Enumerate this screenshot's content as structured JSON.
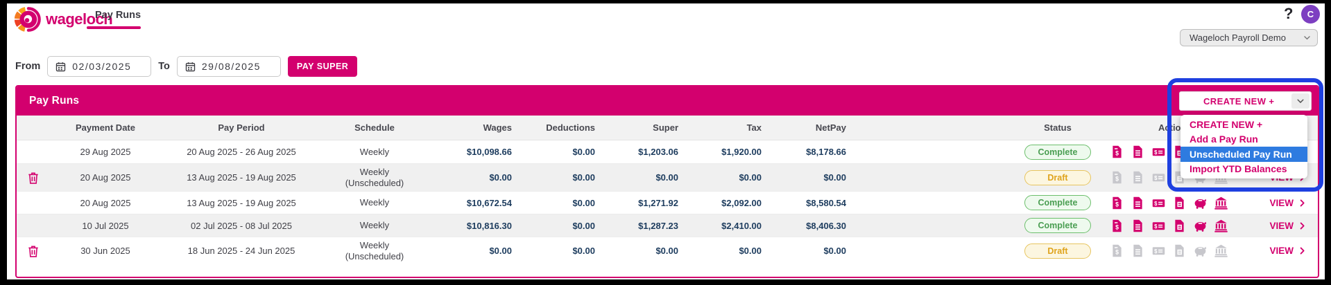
{
  "brand": {
    "wordmark": "wageloch"
  },
  "colors": {
    "accent": "#d3006e",
    "annotation_blue": "#1e40e0",
    "menu_highlight_blue": "#2e7be0",
    "avatar_purple": "#7d3fc1",
    "money_navy": "#1d3c5e",
    "complete_green": "#4a9e52",
    "draft_amber": "#dfa31c"
  },
  "top_nav": {
    "active_tab": "Pay Runs",
    "help_label": "?",
    "avatar_initial": "C"
  },
  "company_select": {
    "value": "Wageloch Payroll Demo"
  },
  "filters": {
    "from_label": "From",
    "from_value": "02/03/2025",
    "to_label": "To",
    "to_value": "29/08/2025",
    "pay_super_label": "PAY SUPER"
  },
  "pay_runs": {
    "title": "Pay Runs",
    "create_new_value": "CREATE NEW +",
    "columns": {
      "payment_date": "Payment Date",
      "pay_period": "Pay Period",
      "schedule": "Schedule",
      "wages": "Wages",
      "deductions": "Deductions",
      "super": "Super",
      "tax": "Tax",
      "netpay": "NetPay",
      "status": "Status",
      "actions": "Actions"
    },
    "view_label": "VIEW",
    "rows": [
      {
        "deletable": false,
        "payment_date": "29 Aug 2025",
        "pay_period": "20 Aug 2025 - 26 Aug 2025",
        "schedule": "Weekly",
        "schedule_note": "",
        "wages": "$10,098.66",
        "deductions": "$0.00",
        "super": "$1,203.06",
        "tax": "$1,920.00",
        "netpay": "$8,178.66",
        "status": "Complete",
        "actions_enabled": true
      },
      {
        "deletable": true,
        "payment_date": "20 Aug 2025",
        "pay_period": "13 Aug 2025 - 19 Aug 2025",
        "schedule": "Weekly",
        "schedule_note": "(Unscheduled)",
        "wages": "$0.00",
        "deductions": "$0.00",
        "super": "$0.00",
        "tax": "$0.00",
        "netpay": "$0.00",
        "status": "Draft",
        "actions_enabled": false
      },
      {
        "deletable": false,
        "payment_date": "20 Aug 2025",
        "pay_period": "13 Aug 2025 - 19 Aug 2025",
        "schedule": "Weekly",
        "schedule_note": "",
        "wages": "$10,672.54",
        "deductions": "$0.00",
        "super": "$1,271.92",
        "tax": "$2,092.00",
        "netpay": "$8,580.54",
        "status": "Complete",
        "actions_enabled": true
      },
      {
        "deletable": false,
        "payment_date": "10 Jul 2025",
        "pay_period": "02 Jul 2025 - 08 Jul 2025",
        "schedule": "Weekly",
        "schedule_note": "",
        "wages": "$10,816.30",
        "deductions": "$0.00",
        "super": "$1,287.23",
        "tax": "$2,410.00",
        "netpay": "$8,406.30",
        "status": "Complete",
        "actions_enabled": true
      },
      {
        "deletable": true,
        "payment_date": "30 Jun 2025",
        "pay_period": "18 Jun 2025 - 24 Jun 2025",
        "schedule": "Weekly",
        "schedule_note": "(Unscheduled)",
        "wages": "$0.00",
        "deductions": "$0.00",
        "super": "$0.00",
        "tax": "$0.00",
        "netpay": "$0.00",
        "status": "Draft",
        "actions_enabled": false
      }
    ]
  },
  "create_new_menu": {
    "options": [
      "CREATE NEW +",
      "Add a Pay Run",
      "Unscheduled Pay Run",
      "Import YTD Balances"
    ],
    "highlighted_index": 2
  },
  "icons": {
    "help": "question-icon",
    "calendar": "calendar-icon",
    "trash": "trash-icon",
    "select_chevron": "chevron-down-icon",
    "view_chevron": "chevron-right-icon",
    "actions": [
      "file-invoice-dollar-icon",
      "file-lines-icon",
      "money-check-icon",
      "file-copy-icon",
      "piggy-bank-icon",
      "bank-icon"
    ]
  }
}
